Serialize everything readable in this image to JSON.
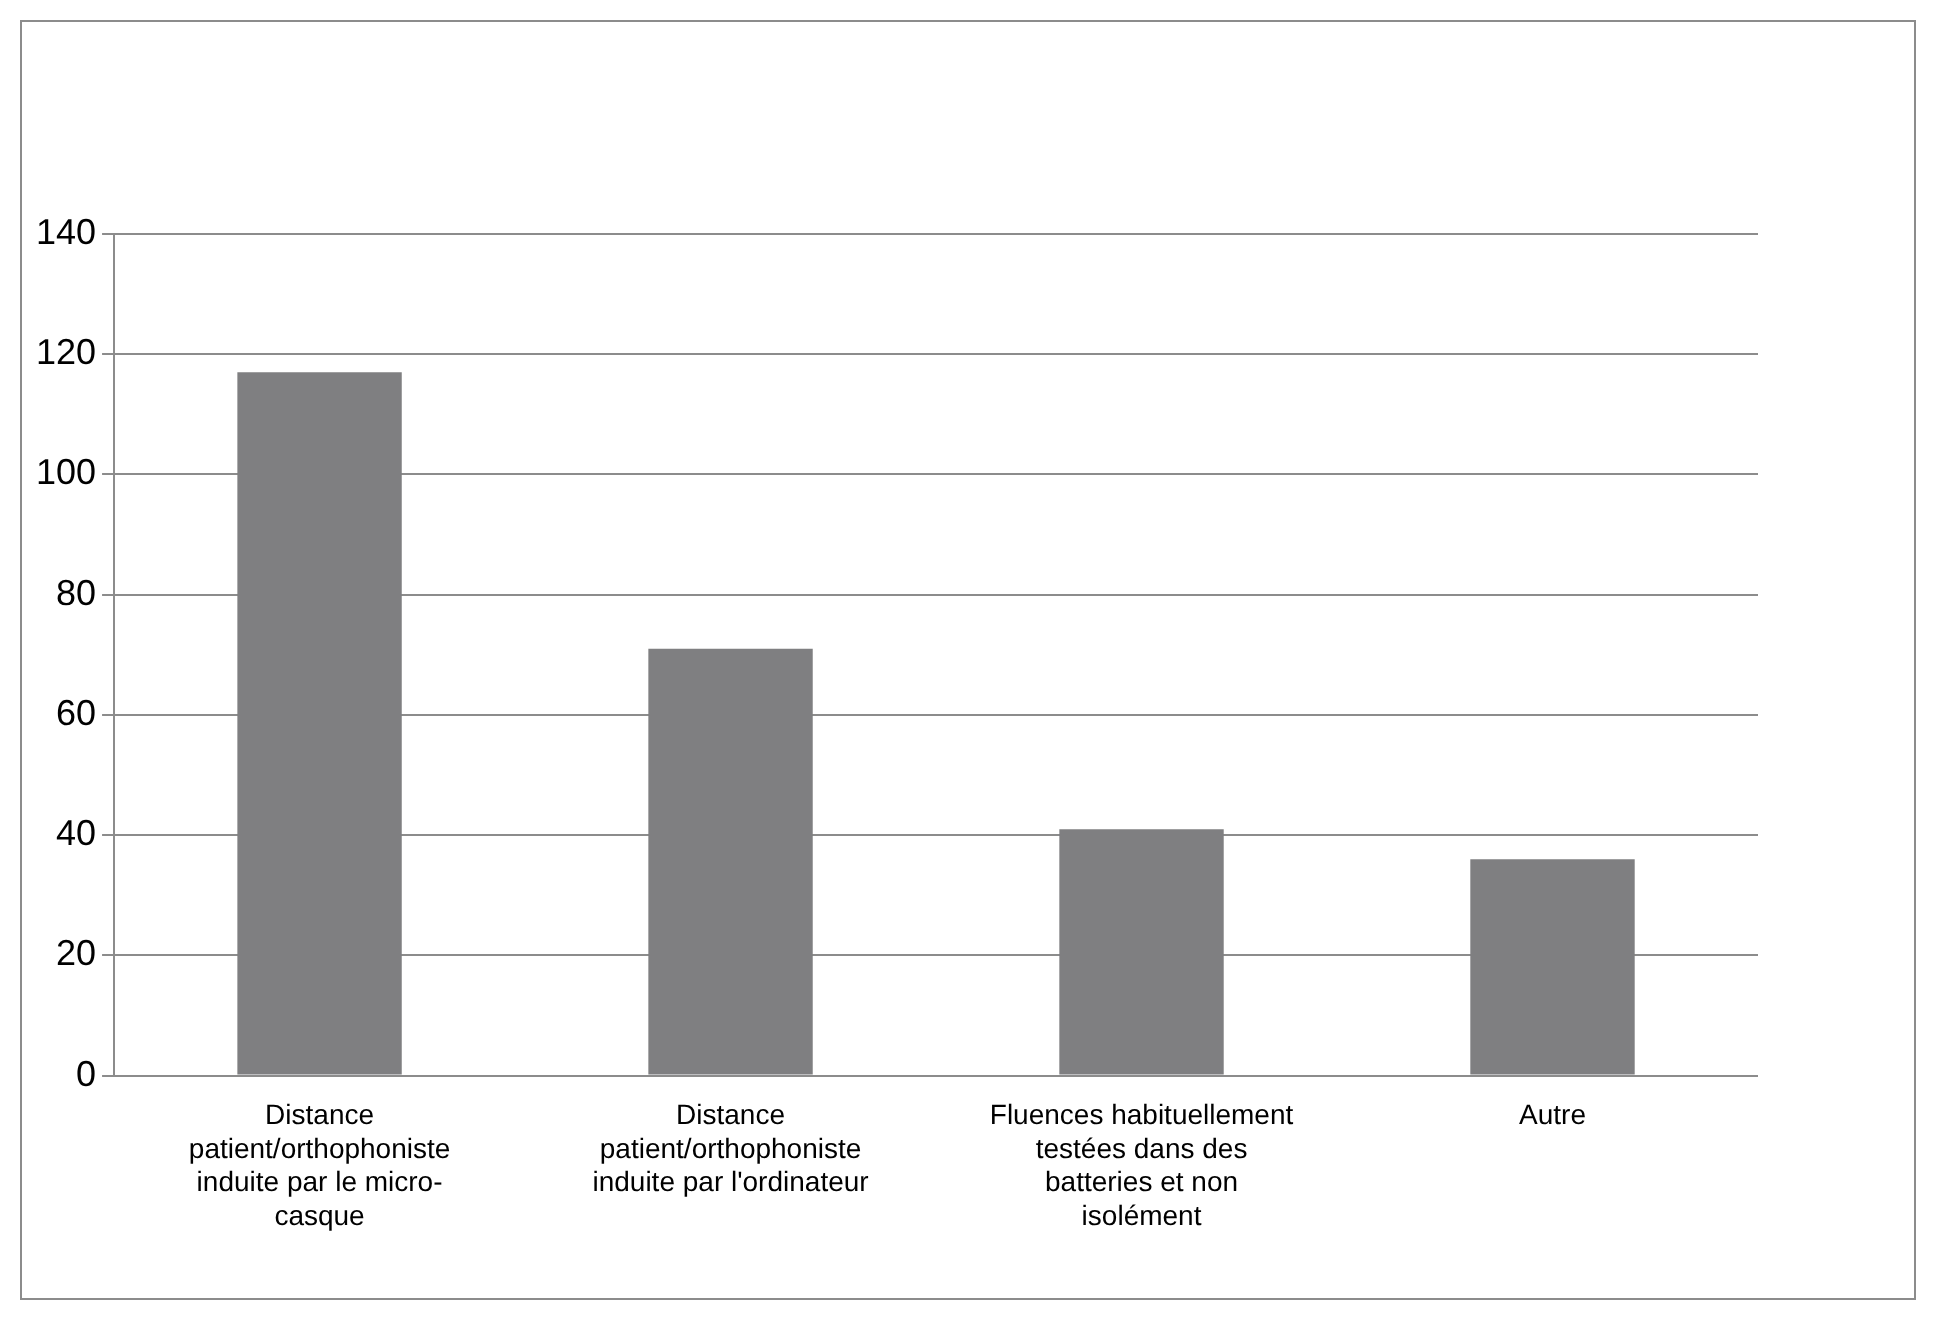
{
  "chart_data": {
    "type": "bar",
    "categories": [
      "Distance patient/orthophoniste induite par le micro-casque",
      "Distance patient/orthophoniste induite par l'ordinateur",
      "Fluences habituellement testées dans des batteries et non isolément",
      "Autre"
    ],
    "values": [
      117,
      71,
      41,
      36
    ],
    "color": "#7f7f81",
    "ylim": [
      0,
      140
    ],
    "yticks": [
      0,
      20,
      40,
      60,
      80,
      100,
      120,
      140
    ],
    "grid": "y",
    "legend": false
  }
}
